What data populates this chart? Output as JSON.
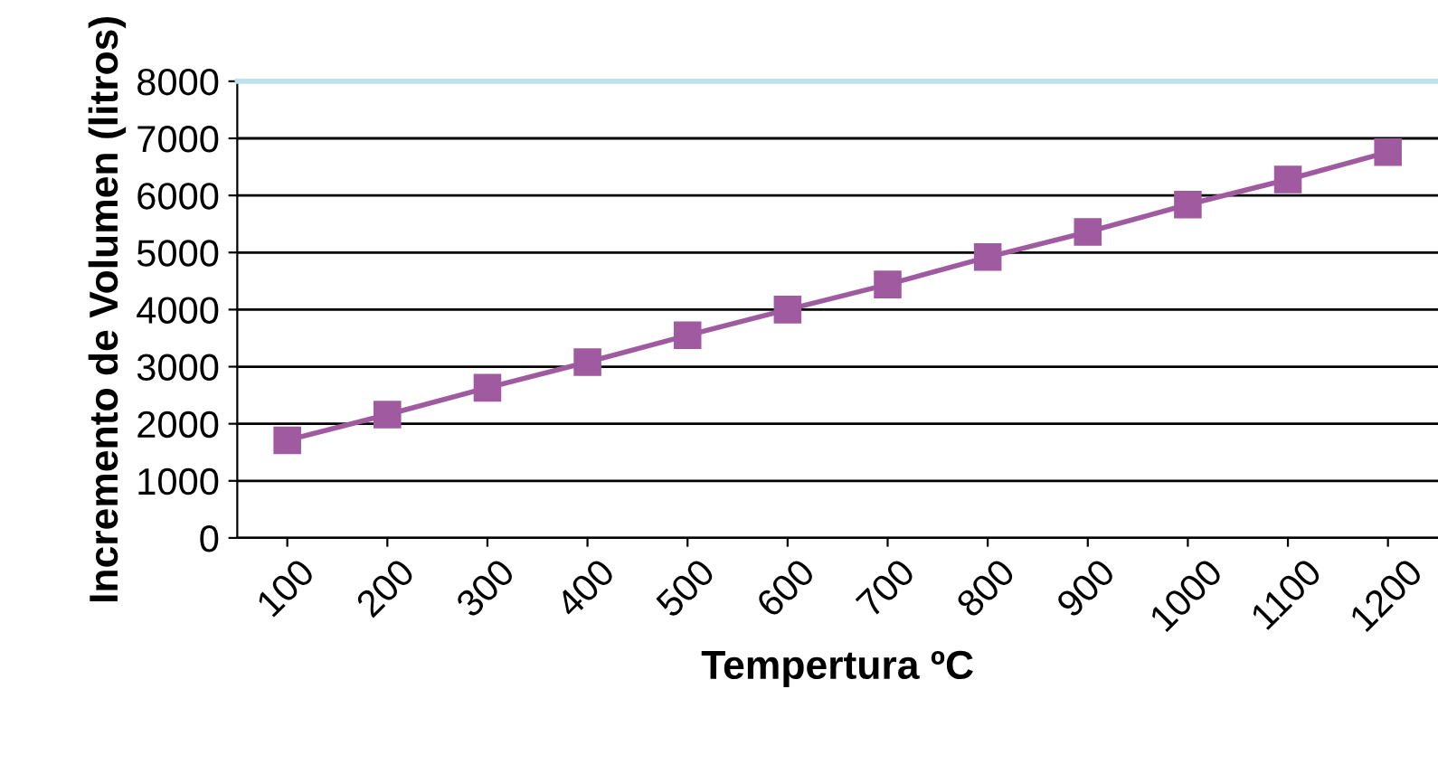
{
  "chart_data": {
    "type": "line",
    "xlabel": "Tempertura ºC",
    "ylabel": "Incremento de Volumen (litros)",
    "categories": [
      "100",
      "200",
      "300",
      "400",
      "500",
      "600",
      "700",
      "800",
      "900",
      "1000",
      "1100",
      "1200"
    ],
    "series": [
      {
        "color": "#a05aa0",
        "values": [
          1710,
          2160,
          2630,
          3080,
          3550,
          4000,
          4440,
          4920,
          5360,
          5840,
          6280,
          6760
        ]
      }
    ],
    "ylim": [
      0,
      8000
    ],
    "yticks": [
      0,
      1000,
      2000,
      3000,
      4000,
      5000,
      6000,
      7000,
      8000
    ],
    "grid": "y",
    "marker": "square",
    "line_style": "solid"
  }
}
